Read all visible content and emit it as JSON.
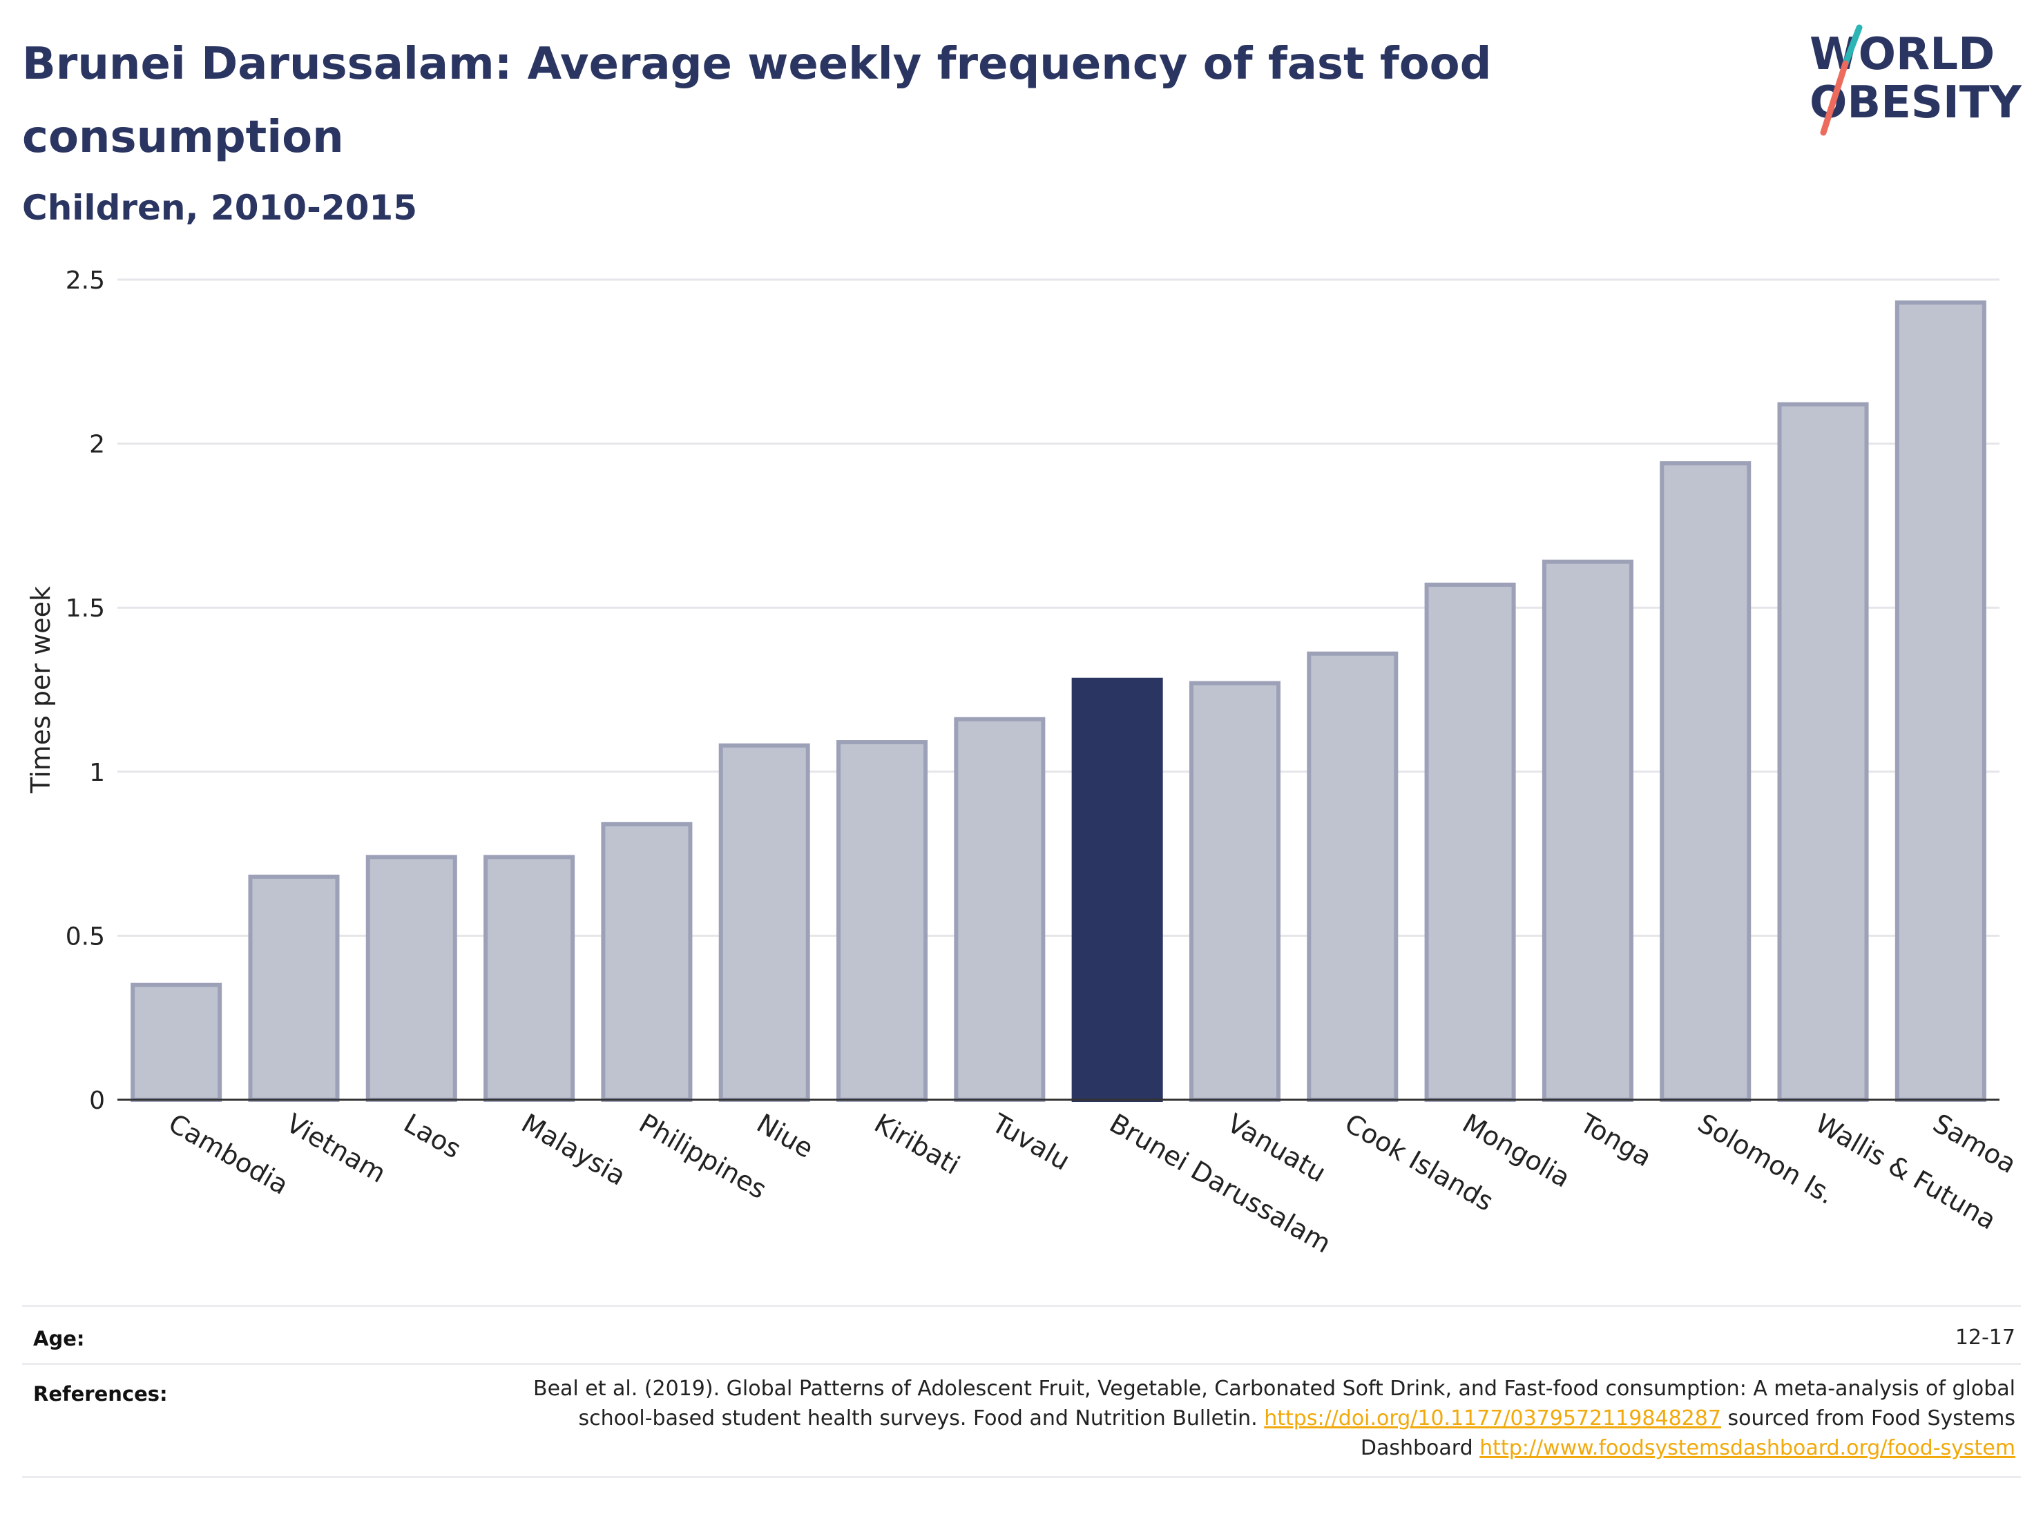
{
  "title": "Brunei Darussalam: Average weekly frequency of fast food consumption",
  "subtitle": "Children, 2010-2015",
  "logo": {
    "line1": "WORLD",
    "line2": "OBESITY"
  },
  "colors": {
    "highlight": "#2a3561",
    "bar_fill": "#bfc2cf",
    "bar_stroke": "#9da1b8",
    "grid": "#e6e6ea"
  },
  "chart_data": {
    "type": "bar",
    "ylabel": "Times per week",
    "ylim": [
      0,
      2.5
    ],
    "yticks": [
      "0",
      "0.5",
      "1",
      "1.5",
      "2",
      "2.5"
    ],
    "categories": [
      "Cambodia",
      "Vietnam",
      "Laos",
      "Malaysia",
      "Philippines",
      "Niue",
      "Kiribati",
      "Tuvalu",
      "Brunei Darussalam",
      "Vanuatu",
      "Cook Islands",
      "Mongolia",
      "Tonga",
      "Solomon Is.",
      "Wallis & Futuna",
      "Samoa"
    ],
    "values": [
      0.35,
      0.68,
      0.74,
      0.74,
      0.84,
      1.08,
      1.09,
      1.16,
      1.28,
      1.27,
      1.36,
      1.57,
      1.64,
      1.94,
      2.12,
      2.43
    ],
    "highlight": "Brunei Darussalam",
    "grid": true
  },
  "footer": {
    "age_label": "Age:",
    "age_value": "12-17",
    "references_label": "References:",
    "ref_text_1": "Beal et al. (2019). Global Patterns of Adolescent Fruit, Vegetable, Carbonated Soft Drink, and Fast-food consumption: A meta-analysis of global school-based student health surveys. Food and Nutrition Bulletin. ",
    "ref_link_1": "https://doi.org/10.1177/0379572119848287",
    "ref_text_2": " sourced from Food Systems Dashboard ",
    "ref_link_2": "http://www.foodsystemsdashboard.org/food-system"
  }
}
